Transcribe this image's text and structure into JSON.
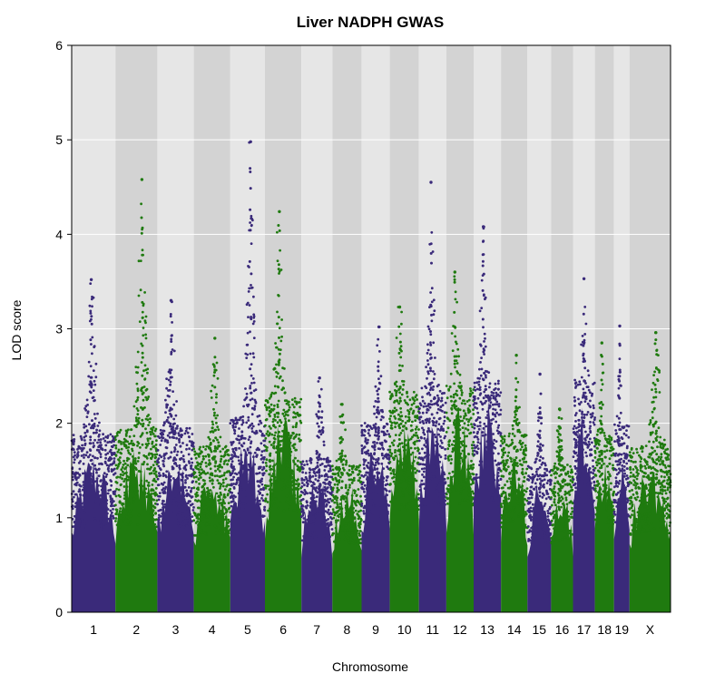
{
  "chart_data": {
    "type": "scatter",
    "title": "Liver NADPH GWAS",
    "xlabel": "Chromosome",
    "ylabel": "LOD score",
    "ylim": [
      0,
      6
    ],
    "yticks": [
      "0",
      "1",
      "2",
      "3",
      "4",
      "5",
      "6"
    ],
    "grid": true,
    "legend": "none",
    "colors": {
      "odd": "#3a2a7a",
      "even": "#1f7a0f",
      "band_light": "#e6e6e6",
      "band_dark": "#d3d3d3",
      "gridline": "#ffffff"
    },
    "chromosomes": [
      {
        "name": "1",
        "peak": 3.52,
        "base": 1.45
      },
      {
        "name": "2",
        "peak": 4.58,
        "base": 1.5
      },
      {
        "name": "3",
        "peak": 3.3,
        "base": 1.5
      },
      {
        "name": "4",
        "peak": 2.9,
        "base": 1.35
      },
      {
        "name": "5",
        "peak": 4.98,
        "base": 1.6
      },
      {
        "name": "6",
        "peak": 4.24,
        "base": 1.75
      },
      {
        "name": "7",
        "peak": 2.48,
        "base": 1.25
      },
      {
        "name": "8",
        "peak": 2.2,
        "base": 1.2
      },
      {
        "name": "9",
        "peak": 3.02,
        "base": 1.55
      },
      {
        "name": "10",
        "peak": 3.23,
        "base": 1.8
      },
      {
        "name": "11",
        "peak": 4.55,
        "base": 1.85
      },
      {
        "name": "12",
        "peak": 3.6,
        "base": 1.85
      },
      {
        "name": "13",
        "peak": 4.08,
        "base": 1.9
      },
      {
        "name": "14",
        "peak": 2.72,
        "base": 1.45
      },
      {
        "name": "15",
        "peak": 2.52,
        "base": 1.2
      },
      {
        "name": "16",
        "peak": 2.15,
        "base": 1.2
      },
      {
        "name": "17",
        "peak": 3.53,
        "base": 1.9
      },
      {
        "name": "18",
        "peak": 2.85,
        "base": 1.45
      },
      {
        "name": "19",
        "peak": 3.03,
        "base": 1.55
      },
      {
        "name": "X",
        "peak": 2.96,
        "base": 1.35
      }
    ]
  }
}
